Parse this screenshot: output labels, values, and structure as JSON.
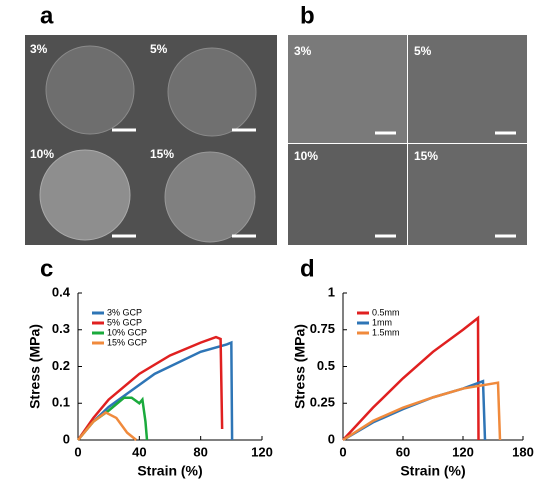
{
  "panels": {
    "a": {
      "label": "a",
      "images": [
        "3%",
        "5%",
        "10%",
        "15%"
      ]
    },
    "b": {
      "label": "b",
      "images": [
        "3%",
        "5%",
        "10%",
        "15%"
      ]
    },
    "c": {
      "label": "c"
    },
    "d": {
      "label": "d"
    }
  },
  "chart_data": [
    {
      "type": "line",
      "x_label": "Strain (%)",
      "y_label": "Stress (MPa)",
      "xlim": [
        0,
        120
      ],
      "ylim": [
        0,
        0.4
      ],
      "xticks": [
        0,
        40,
        80,
        120
      ],
      "yticks": [
        0,
        0.1,
        0.2,
        0.3,
        0.4
      ],
      "legend": "upper-left",
      "series": [
        {
          "name": "3% GCP",
          "color": "#2e75b6",
          "x": [
            0,
            10,
            20,
            40,
            50,
            60,
            80,
            97,
            100,
            100.5
          ],
          "values": [
            0,
            0.05,
            0.09,
            0.15,
            0.18,
            0.2,
            0.24,
            0.26,
            0.265,
            0
          ]
        },
        {
          "name": "5% GCP",
          "color": "#e02020",
          "x": [
            0,
            10,
            20,
            40,
            60,
            80,
            90,
            93,
            94
          ],
          "values": [
            0,
            0.06,
            0.11,
            0.18,
            0.23,
            0.265,
            0.28,
            0.275,
            0.03
          ]
        },
        {
          "name": "10% GCP",
          "color": "#1aaa3c",
          "x": [
            0,
            10,
            20,
            30,
            35,
            40,
            42,
            44,
            45
          ],
          "values": [
            0,
            0.05,
            0.08,
            0.115,
            0.115,
            0.1,
            0.11,
            0.05,
            0
          ]
        },
        {
          "name": "15% GCP",
          "color": "#f08a3c",
          "x": [
            0,
            10,
            18,
            25,
            32,
            38
          ],
          "values": [
            0,
            0.05,
            0.075,
            0.06,
            0.02,
            0
          ]
        }
      ]
    },
    {
      "type": "line",
      "x_label": "Strain (%)",
      "y_label": "Stress (MPa)",
      "xlim": [
        0,
        180
      ],
      "ylim": [
        0,
        1
      ],
      "xticks": [
        0,
        60,
        120,
        180
      ],
      "yticks": [
        0,
        0.25,
        0.5,
        0.75,
        1
      ],
      "legend": "upper-left",
      "series": [
        {
          "name": "0.5mm",
          "color": "#e02020",
          "x": [
            0,
            30,
            60,
            90,
            120,
            135,
            135.5
          ],
          "values": [
            0,
            0.22,
            0.42,
            0.6,
            0.75,
            0.83,
            0
          ]
        },
        {
          "name": "1mm",
          "color": "#2e75b6",
          "x": [
            0,
            30,
            60,
            90,
            120,
            140,
            142
          ],
          "values": [
            0,
            0.12,
            0.21,
            0.29,
            0.35,
            0.4,
            0
          ]
        },
        {
          "name": "1.5mm",
          "color": "#f08a3c",
          "x": [
            0,
            30,
            60,
            90,
            120,
            155,
            157
          ],
          "values": [
            0,
            0.13,
            0.22,
            0.29,
            0.35,
            0.39,
            0
          ]
        }
      ]
    }
  ]
}
